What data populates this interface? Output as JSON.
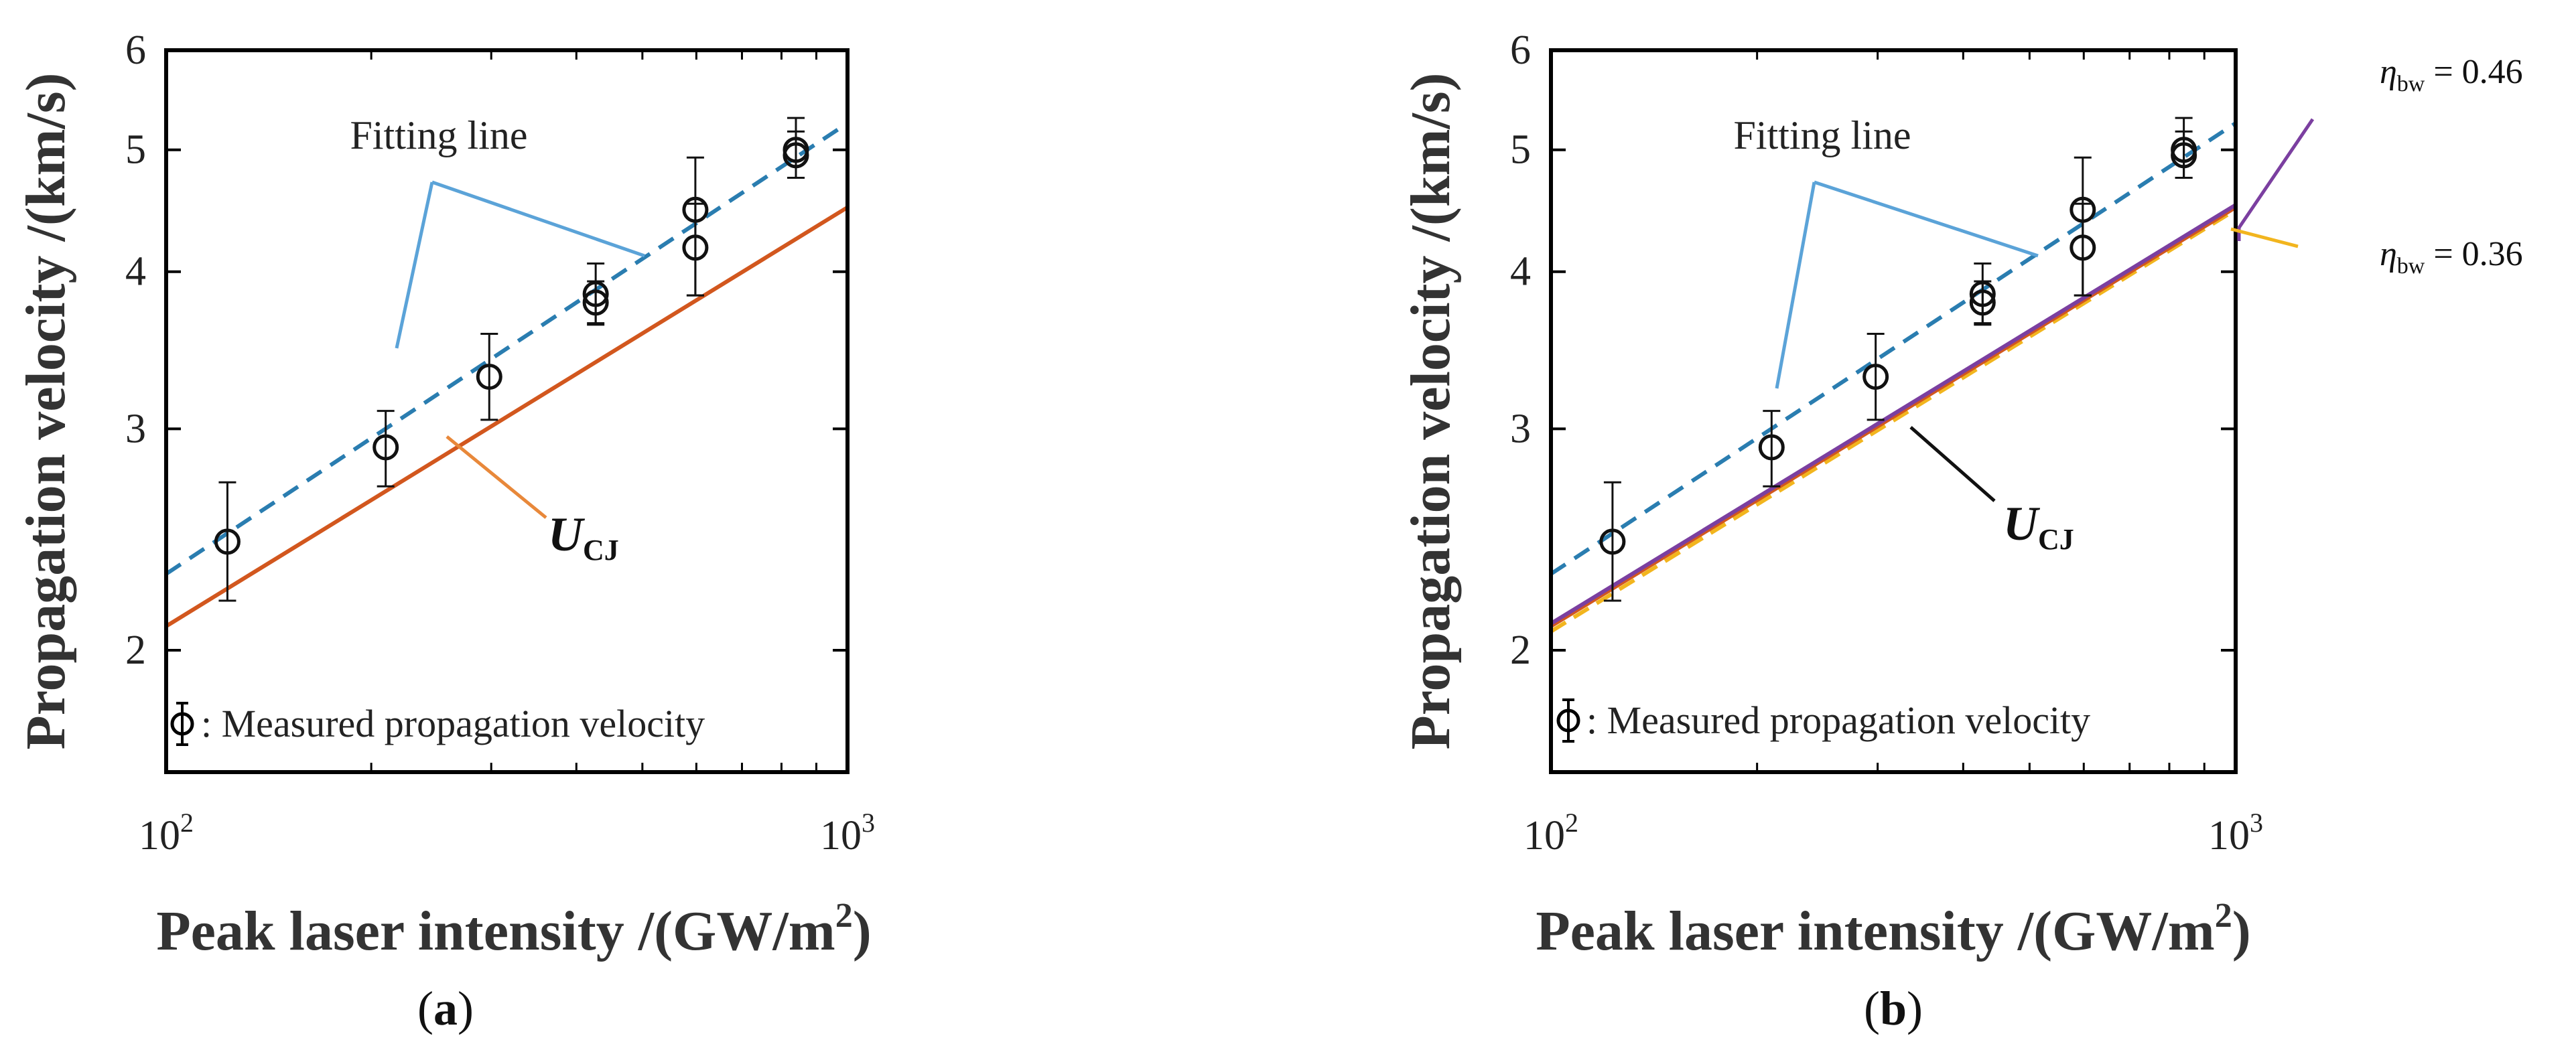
{
  "chart_data": [
    {
      "id": "a",
      "type": "scatter",
      "caption_pre": "(",
      "caption_letter": "a",
      "caption_post": ")",
      "xscale": "log",
      "yscale": "log",
      "xlim": [
        100,
        1000
      ],
      "ylim": [
        1.6,
        6
      ],
      "xlabel": "Peak laser intensity /(GW/m",
      "xlabel_sup": "2",
      "xlabel_tail": ")",
      "ylabel": "Propagation velocity /(km/s)",
      "xticks": [
        {
          "value": 100,
          "base": "10",
          "exp": "2"
        },
        {
          "value": 1000,
          "base": "10",
          "exp": "3"
        }
      ],
      "yticks": [
        {
          "value": 2,
          "label": "2"
        },
        {
          "value": 3,
          "label": "3"
        },
        {
          "value": 4,
          "label": "4"
        },
        {
          "value": 5,
          "label": "5"
        },
        {
          "value": 6,
          "label": "6"
        }
      ],
      "measured": [
        {
          "x": 123,
          "y": 2.44,
          "err_low": 0.25,
          "err_high": 0.28
        },
        {
          "x": 210,
          "y": 2.9,
          "err_low": 0.2,
          "err_high": 0.2
        },
        {
          "x": 298,
          "y": 3.3,
          "err_low": 0.25,
          "err_high": 0.27
        },
        {
          "x": 427,
          "y": 3.84,
          "err_low": 0.2,
          "err_high": 0.22
        },
        {
          "x": 427,
          "y": 3.78,
          "err_low": 0.15,
          "err_high": 0.15
        },
        {
          "x": 598,
          "y": 4.48,
          "err_low": 0.65,
          "err_high": 0.45
        },
        {
          "x": 598,
          "y": 4.18,
          "err_low": 0.35,
          "err_high": 0.35
        },
        {
          "x": 840,
          "y": 5.0,
          "err_low": 0.25,
          "err_high": 0.3
        },
        {
          "x": 840,
          "y": 4.95,
          "err_low": 0.2,
          "err_high": 0.22
        }
      ],
      "fitting_line": {
        "x": [
          100,
          1000
        ],
        "y": [
          2.3,
          5.25
        ],
        "color": "#2a7db0"
      },
      "ucj_lines": [
        {
          "x": [
            100,
            1000
          ],
          "y": [
            2.09,
            4.5
          ],
          "color": "#d2571e"
        }
      ],
      "annotations": {
        "fitting_text": "Fitting line",
        "fitting_color": "#5ba3d8",
        "ucj_main": "U",
        "ucj_sub": "CJ",
        "ucj_pointer_color": "#e8883a",
        "legend_text": ": Measured propagation velocity"
      }
    },
    {
      "id": "b",
      "type": "scatter",
      "caption_pre": "(",
      "caption_letter": "b",
      "caption_post": ")",
      "xscale": "log",
      "yscale": "log",
      "xlim": [
        100,
        1000
      ],
      "ylim": [
        1.6,
        6
      ],
      "xlabel": "Peak laser intensity /(GW/m",
      "xlabel_sup": "2",
      "xlabel_tail": ")",
      "ylabel": "Propagation velocity /(km/s)",
      "xticks": [
        {
          "value": 100,
          "base": "10",
          "exp": "2"
        },
        {
          "value": 1000,
          "base": "10",
          "exp": "3"
        }
      ],
      "yticks": [
        {
          "value": 2,
          "label": "2"
        },
        {
          "value": 3,
          "label": "3"
        },
        {
          "value": 4,
          "label": "4"
        },
        {
          "value": 5,
          "label": "5"
        },
        {
          "value": 6,
          "label": "6"
        }
      ],
      "measured": [
        {
          "x": 123,
          "y": 2.44,
          "err_low": 0.25,
          "err_high": 0.28
        },
        {
          "x": 210,
          "y": 2.9,
          "err_low": 0.2,
          "err_high": 0.2
        },
        {
          "x": 298,
          "y": 3.3,
          "err_low": 0.25,
          "err_high": 0.27
        },
        {
          "x": 427,
          "y": 3.84,
          "err_low": 0.2,
          "err_high": 0.22
        },
        {
          "x": 427,
          "y": 3.78,
          "err_low": 0.15,
          "err_high": 0.15
        },
        {
          "x": 598,
          "y": 4.48,
          "err_low": 0.65,
          "err_high": 0.45
        },
        {
          "x": 598,
          "y": 4.18,
          "err_low": 0.35,
          "err_high": 0.35
        },
        {
          "x": 840,
          "y": 5.0,
          "err_low": 0.25,
          "err_high": 0.3
        },
        {
          "x": 840,
          "y": 4.95,
          "err_low": 0.2,
          "err_high": 0.22
        }
      ],
      "fitting_line": {
        "x": [
          100,
          1000
        ],
        "y": [
          2.3,
          5.25
        ],
        "color": "#2a7db0"
      },
      "ucj_lines": [
        {
          "name": "eta_bw = 0.36",
          "x": [
            100,
            1000
          ],
          "y": [
            2.07,
            4.48
          ],
          "color": "#f2b51e"
        },
        {
          "name": "UCJ",
          "x": [
            100,
            1000
          ],
          "y": [
            2.09,
            4.5
          ],
          "color": "#d2571e"
        },
        {
          "name": "eta_bw = 0.46",
          "x": [
            100,
            1000
          ],
          "y": [
            2.1,
            4.52
          ],
          "color": "#7b3fa0"
        }
      ],
      "annotations": {
        "fitting_text": "Fitting line",
        "fitting_color": "#5ba3d8",
        "ucj_main": "U",
        "ucj_sub": "CJ",
        "ucj_pointer_color": "#111111",
        "legend_text": ": Measured propagation velocity",
        "eta_labels": [
          {
            "eta": "η",
            "sub": "bw",
            "rest": " = 0.46",
            "color": "#7b3fa0"
          },
          {
            "eta": "η",
            "sub": "bw",
            "rest": " = 0.36",
            "color": "#f2b51e"
          }
        ]
      }
    }
  ]
}
